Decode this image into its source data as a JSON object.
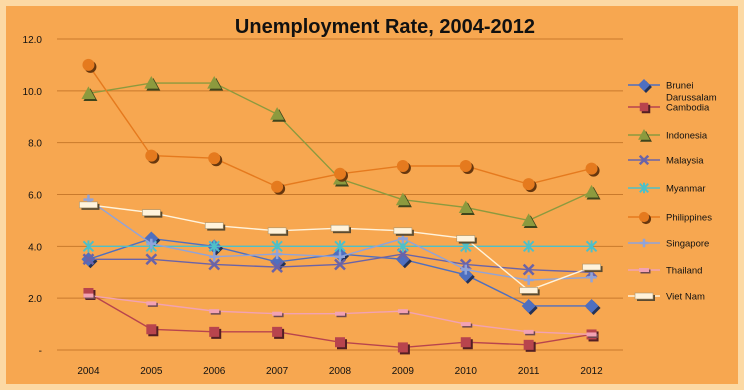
{
  "chart_data": {
    "type": "line",
    "title": "Unemployment Rate, 2004-2012",
    "xlabel": "",
    "ylabel": "",
    "x": [
      "2004",
      "2005",
      "2006",
      "2007",
      "2008",
      "2009",
      "2010",
      "2011",
      "2012"
    ],
    "yticks": [
      "-",
      "2.0",
      "4.0",
      "6.0",
      "8.0",
      "10.0",
      "12.0"
    ],
    "ylim": [
      0,
      12
    ],
    "grid": true,
    "legend_position": "right",
    "series": [
      {
        "name": "Brunei Darussalam",
        "marker": "diamond",
        "color": "#4f6fbf",
        "values": [
          3.5,
          4.3,
          4.0,
          3.4,
          3.7,
          3.5,
          2.9,
          1.7,
          1.7
        ]
      },
      {
        "name": "Cambodia",
        "marker": "square",
        "color": "#b8444d",
        "values": [
          2.2,
          0.8,
          0.7,
          0.7,
          0.3,
          0.1,
          0.3,
          0.2,
          0.6
        ]
      },
      {
        "name": "Indonesia",
        "marker": "triangle",
        "color": "#8c9a3e",
        "values": [
          9.9,
          10.3,
          10.3,
          9.1,
          6.6,
          5.8,
          5.5,
          5.0,
          6.1
        ]
      },
      {
        "name": "Malaysia",
        "marker": "x",
        "color": "#6a63a8",
        "values": [
          3.5,
          3.5,
          3.3,
          3.2,
          3.3,
          3.7,
          3.3,
          3.1,
          3.0
        ]
      },
      {
        "name": "Myanmar",
        "marker": "asterisk",
        "color": "#4ec0c8",
        "values": [
          4.0,
          4.0,
          4.0,
          4.0,
          4.0,
          4.0,
          4.0,
          4.0,
          4.0
        ]
      },
      {
        "name": "Philippines",
        "marker": "circle",
        "color": "#e57a1e",
        "values": [
          11.0,
          7.5,
          7.4,
          6.3,
          6.8,
          7.1,
          7.1,
          6.4,
          7.0
        ]
      },
      {
        "name": "Singapore",
        "marker": "plus",
        "color": "#8fa3da",
        "values": [
          5.8,
          4.1,
          3.6,
          3.7,
          3.6,
          4.3,
          3.1,
          2.7,
          2.8
        ]
      },
      {
        "name": "Thailand",
        "marker": "dash",
        "color": "#f2a2b3",
        "values": [
          2.1,
          1.8,
          1.5,
          1.4,
          1.4,
          1.5,
          1.0,
          0.7,
          0.6
        ]
      },
      {
        "name": "Viet Nam",
        "marker": "bar",
        "color": "#fff3dc",
        "values": [
          5.6,
          5.3,
          4.8,
          4.6,
          4.7,
          4.6,
          4.3,
          2.3,
          3.2
        ]
      }
    ]
  }
}
